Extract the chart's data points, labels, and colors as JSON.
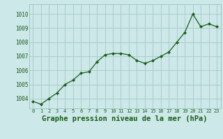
{
  "x": [
    0,
    1,
    2,
    3,
    4,
    5,
    6,
    7,
    8,
    9,
    10,
    11,
    12,
    13,
    14,
    15,
    16,
    17,
    18,
    19,
    20,
    21,
    22,
    23
  ],
  "y": [
    1003.8,
    1003.6,
    1004.0,
    1004.4,
    1005.0,
    1005.3,
    1005.8,
    1005.9,
    1006.6,
    1007.1,
    1007.2,
    1007.2,
    1007.1,
    1006.7,
    1006.5,
    1006.7,
    1007.0,
    1007.3,
    1008.0,
    1008.7,
    1010.0,
    1009.1,
    1009.3,
    1009.1
  ],
  "line_color": "#1a5c1a",
  "marker": "D",
  "marker_size": 2.2,
  "bg_color": "#cce8e8",
  "grid_color": "#aacccc",
  "xlabel": "Graphe pression niveau de la mer (hPa)",
  "xlabel_fontsize": 7.5,
  "tick_label_color": "#1a5c1a",
  "ylim_min": 1003.3,
  "ylim_max": 1010.7,
  "yticks": [
    1004,
    1005,
    1006,
    1007,
    1008,
    1009,
    1010
  ],
  "xticks": [
    0,
    1,
    2,
    3,
    4,
    5,
    6,
    7,
    8,
    9,
    10,
    11,
    12,
    13,
    14,
    15,
    16,
    17,
    18,
    19,
    20,
    21,
    22,
    23
  ]
}
